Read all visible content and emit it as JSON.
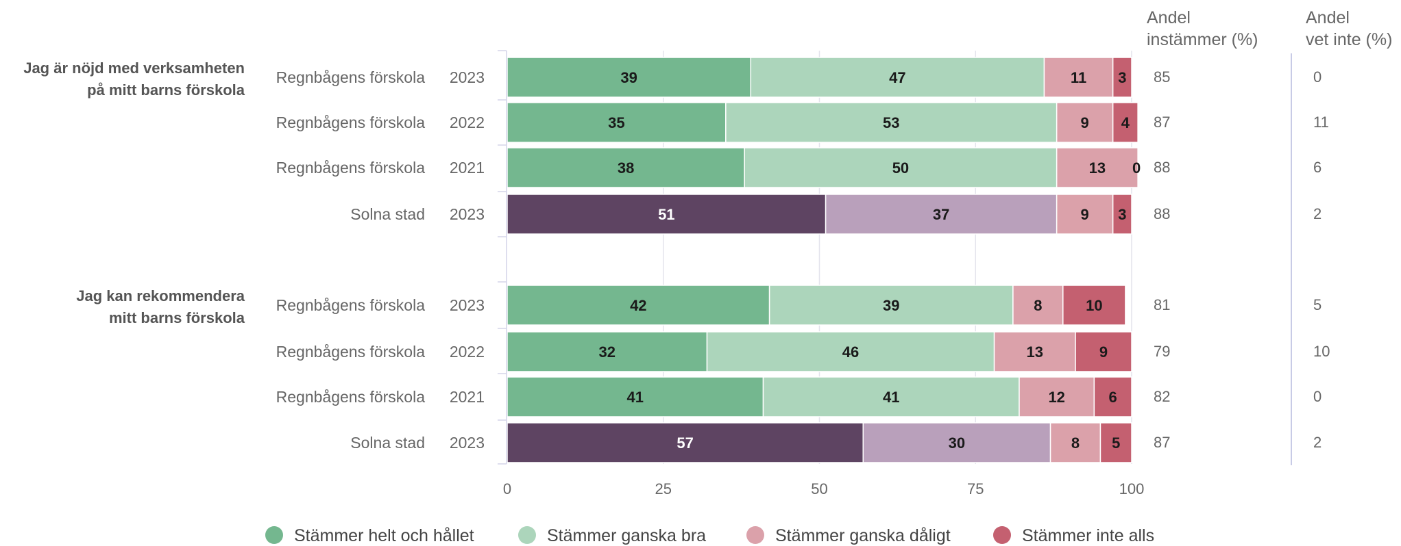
{
  "chart_data": {
    "type": "bar",
    "orientation": "horizontal",
    "stacked": true,
    "xlim": [
      0,
      100
    ],
    "x_ticks": [
      0,
      25,
      50,
      75,
      100
    ],
    "grid": true,
    "legend_position": "bottom",
    "columns": {
      "agree_header": [
        "Andel",
        "instämmer (%)"
      ],
      "dontknow_header": [
        "Andel",
        "vet inte (%)"
      ]
    },
    "legend": [
      {
        "label": "Stämmer helt och hållet",
        "color": "#74b78f"
      },
      {
        "label": "Stämmer ganska bra",
        "color": "#acd5bb"
      },
      {
        "label": "Stämmer ganska dåligt",
        "color": "#dba1aa"
      },
      {
        "label": "Stämmer inte alls",
        "color": "#c46070"
      }
    ],
    "city_colors": [
      "#5e4462",
      "#b9a0bb",
      "#dba1aa",
      "#c46070"
    ],
    "groups": [
      {
        "question": [
          "Jag är nöjd med verksamheten",
          "på mitt barns förskola"
        ],
        "rows": [
          {
            "label": "Regnbågens förskola",
            "year": "2023",
            "values": [
              39,
              47,
              11,
              3
            ],
            "agree": "85",
            "dontknow": "0",
            "city": false
          },
          {
            "label": "Regnbågens förskola",
            "year": "2022",
            "values": [
              35,
              53,
              9,
              4
            ],
            "agree": "87",
            "dontknow": "11",
            "city": false
          },
          {
            "label": "Regnbågens förskola",
            "year": "2021",
            "values": [
              38,
              50,
              13,
              0
            ],
            "agree": "88",
            "dontknow": "6",
            "city": false
          },
          {
            "label": "Solna stad",
            "year": "2023",
            "values": [
              51,
              37,
              9,
              3
            ],
            "agree": "88",
            "dontknow": "2",
            "city": true
          }
        ]
      },
      {
        "question": [
          "Jag kan rekommendera",
          "mitt barns förskola"
        ],
        "rows": [
          {
            "label": "Regnbågens förskola",
            "year": "2023",
            "values": [
              42,
              39,
              8,
              10
            ],
            "agree": "81",
            "dontknow": "5",
            "city": false
          },
          {
            "label": "Regnbågens förskola",
            "year": "2022",
            "values": [
              32,
              46,
              13,
              9
            ],
            "agree": "79",
            "dontknow": "10",
            "city": false
          },
          {
            "label": "Regnbågens förskola",
            "year": "2021",
            "values": [
              41,
              41,
              12,
              6
            ],
            "agree": "82",
            "dontknow": "0",
            "city": false
          },
          {
            "label": "Solna stad",
            "year": "2023",
            "values": [
              57,
              30,
              8,
              5
            ],
            "agree": "87",
            "dontknow": "2",
            "city": true
          }
        ]
      }
    ]
  }
}
